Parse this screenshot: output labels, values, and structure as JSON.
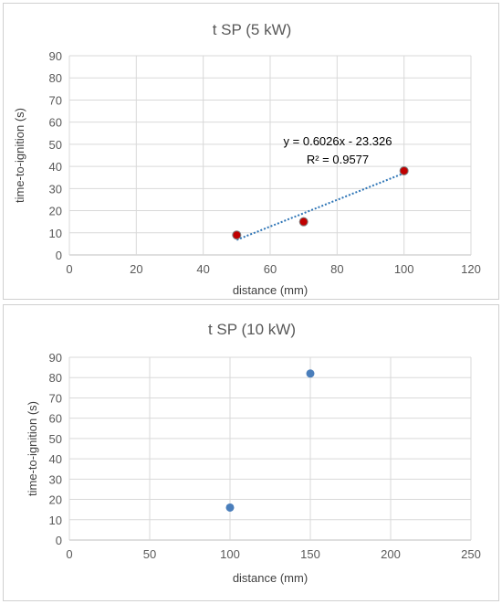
{
  "chart_data": [
    {
      "type": "scatter",
      "title": "t SP (5 kW)",
      "xlabel": "distance (mm)",
      "ylabel": "time-to-ignition (s)",
      "xlim": [
        0,
        120
      ],
      "ylim": [
        0,
        90
      ],
      "xticks": [
        0,
        20,
        40,
        60,
        80,
        100,
        120
      ],
      "yticks": [
        0,
        10,
        20,
        30,
        40,
        50,
        60,
        70,
        80,
        90
      ],
      "grid": true,
      "marker_color": "#c00000",
      "marker_edge": "#7f7f7f",
      "series": [
        {
          "x": [
            50,
            70,
            100
          ],
          "y": [
            9,
            15,
            38
          ]
        }
      ],
      "trendline": {
        "type": "linear",
        "slope": 0.6026,
        "intercept": -23.326,
        "x_range": [
          50,
          100
        ],
        "color": "#2e75b6",
        "equation": "y = 0.6026x - 23.326",
        "r_squared": "R² = 0.9577"
      }
    },
    {
      "type": "scatter",
      "title": "t SP (10  kW)",
      "xlabel": "distance (mm)",
      "ylabel": "time-to-ignition (s)",
      "xlim": [
        0,
        250
      ],
      "ylim": [
        0,
        90
      ],
      "xticks": [
        0,
        50,
        100,
        150,
        200,
        250
      ],
      "yticks": [
        0,
        10,
        20,
        30,
        40,
        50,
        60,
        70,
        80,
        90
      ],
      "grid": true,
      "marker_color": "#4a7ebb",
      "series": [
        {
          "x": [
            100,
            150
          ],
          "y": [
            16,
            82
          ]
        }
      ]
    }
  ]
}
